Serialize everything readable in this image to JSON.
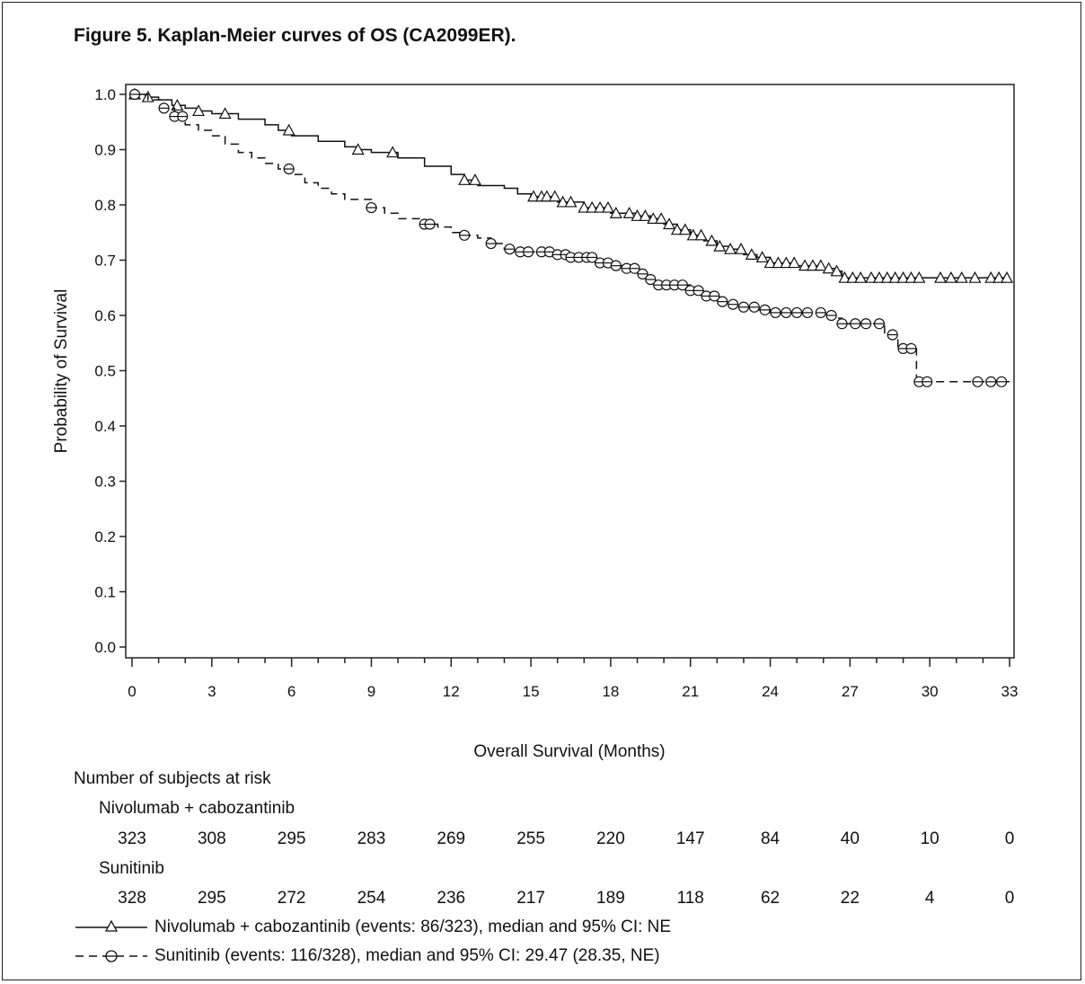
{
  "title": "Figure 5. Kaplan-Meier curves of OS (CA2099ER).",
  "chart_data": {
    "type": "line",
    "xlabel": "Overall Survival (Months)",
    "ylabel": "Probability of Survival",
    "xlim": [
      0,
      33
    ],
    "ylim": [
      0.0,
      1.0
    ],
    "xticks": [
      "0",
      "3",
      "6",
      "9",
      "12",
      "15",
      "18",
      "21",
      "24",
      "27",
      "30",
      "33"
    ],
    "yticks": [
      "0.0",
      "0.1",
      "0.2",
      "0.3",
      "0.4",
      "0.5",
      "0.6",
      "0.7",
      "0.8",
      "0.9",
      "1.0"
    ],
    "grid": false,
    "series": [
      {
        "name": "Nivolumab + cabozantinib",
        "line": "solid",
        "marker": "triangle",
        "x": [
          0,
          0.5,
          1,
          1.5,
          2,
          2.5,
          3,
          4,
          5,
          5.5,
          6,
          7,
          8,
          8.5,
          9,
          10,
          11,
          12,
          12.5,
          13,
          14,
          14.5,
          15,
          16,
          17,
          18,
          19,
          19.5,
          20,
          20.5,
          21,
          21.5,
          22,
          22.5,
          23,
          23.5,
          24,
          25,
          26,
          26.5,
          26.7,
          33
        ],
        "y": [
          1.0,
          0.995,
          0.99,
          0.98,
          0.975,
          0.97,
          0.965,
          0.955,
          0.945,
          0.935,
          0.925,
          0.915,
          0.905,
          0.9,
          0.895,
          0.885,
          0.87,
          0.855,
          0.845,
          0.835,
          0.83,
          0.82,
          0.815,
          0.805,
          0.795,
          0.785,
          0.78,
          0.775,
          0.765,
          0.755,
          0.745,
          0.735,
          0.725,
          0.72,
          0.71,
          0.705,
          0.695,
          0.69,
          0.685,
          0.68,
          0.668,
          0.668
        ],
        "censor_x": [
          0.1,
          0.6,
          1.7,
          2.5,
          3.5,
          5.9,
          8.5,
          9.8,
          12.5,
          12.9,
          15.1,
          15.4,
          15.6,
          15.9,
          16.2,
          16.5,
          17,
          17.3,
          17.6,
          17.9,
          18.2,
          18.7,
          19,
          19.3,
          19.6,
          19.9,
          20.2,
          20.5,
          20.8,
          21.1,
          21.4,
          21.8,
          22.1,
          22.5,
          22.9,
          23.3,
          23.7,
          24,
          24.3,
          24.6,
          24.9,
          25.3,
          25.6,
          25.9,
          26.2,
          26.5,
          26.8,
          27.1,
          27.4,
          27.8,
          28.1,
          28.4,
          28.7,
          29,
          29.3,
          29.6,
          30.4,
          30.8,
          31.2,
          31.7,
          32.3,
          32.6,
          32.9
        ]
      },
      {
        "name": "Sunitinib",
        "line": "dashed",
        "marker": "circle",
        "x": [
          0,
          0.6,
          1.2,
          1.6,
          2,
          2.5,
          3,
          3.5,
          4,
          4.5,
          5,
          5.5,
          6,
          6.5,
          7,
          7.5,
          8,
          9,
          9.5,
          10,
          11,
          11.5,
          12,
          12.5,
          13,
          13.5,
          14,
          14.5,
          16,
          16.5,
          17.5,
          18,
          18.5,
          19,
          19.5,
          19.8,
          21,
          21.5,
          22,
          22.5,
          23,
          23.5,
          24,
          25,
          26,
          26.5,
          26.7,
          28,
          28.3,
          28.8,
          29.1,
          29.5,
          33
        ],
        "y": [
          1.0,
          0.99,
          0.975,
          0.96,
          0.945,
          0.935,
          0.925,
          0.91,
          0.895,
          0.885,
          0.875,
          0.865,
          0.855,
          0.84,
          0.83,
          0.82,
          0.81,
          0.795,
          0.785,
          0.775,
          0.765,
          0.76,
          0.75,
          0.745,
          0.74,
          0.73,
          0.72,
          0.715,
          0.71,
          0.705,
          0.695,
          0.69,
          0.685,
          0.675,
          0.665,
          0.655,
          0.645,
          0.635,
          0.625,
          0.62,
          0.615,
          0.61,
          0.605,
          0.605,
          0.6,
          0.595,
          0.585,
          0.585,
          0.565,
          0.54,
          0.54,
          0.48,
          0.48
        ],
        "censor_x": [
          0.1,
          1.2,
          1.6,
          1.9,
          5.9,
          9,
          11,
          11.2,
          12.5,
          13.5,
          14.2,
          14.6,
          14.9,
          15.4,
          15.7,
          16,
          16.3,
          16.5,
          16.8,
          17.1,
          17.3,
          17.6,
          17.9,
          18.2,
          18.6,
          18.9,
          19.2,
          19.5,
          19.8,
          20.1,
          20.4,
          20.7,
          21,
          21.3,
          21.6,
          21.9,
          22.2,
          22.6,
          23,
          23.4,
          23.8,
          24.2,
          24.6,
          25,
          25.4,
          25.9,
          26.3,
          26.7,
          27.2,
          27.6,
          28.1,
          28.6,
          29,
          29.3,
          29.6,
          29.9,
          31.8,
          32.3,
          32.7
        ]
      }
    ],
    "risk_table": {
      "header": "Number of subjects at risk",
      "times": [
        "0",
        "3",
        "6",
        "9",
        "12",
        "15",
        "18",
        "21",
        "24",
        "27",
        "30",
        "33"
      ],
      "groups": [
        {
          "name": "Nivolumab + cabozantinib",
          "counts": [
            "323",
            "308",
            "295",
            "283",
            "269",
            "255",
            "220",
            "147",
            "84",
            "40",
            "10",
            "0"
          ]
        },
        {
          "name": "Sunitinib",
          "counts": [
            "328",
            "295",
            "272",
            "254",
            "236",
            "217",
            "189",
            "118",
            "62",
            "22",
            "4",
            "0"
          ]
        }
      ]
    },
    "legend": [
      "Nivolumab + cabozantinib (events: 86/323), median and 95% CI: NE",
      "Sunitinib (events: 116/328), median and 95% CI: 29.47 (28.35, NE)"
    ]
  }
}
